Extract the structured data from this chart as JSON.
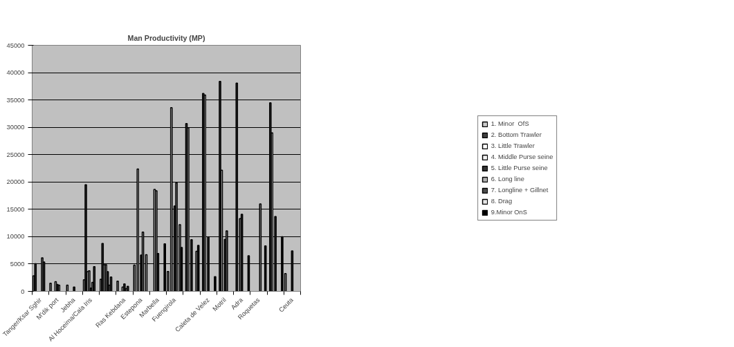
{
  "chart_data": {
    "type": "bar",
    "title": "Man Productivity (MP)",
    "categories": [
      "Tanger/Ksar Sghir",
      "M'dik port",
      "Jebha",
      "Al Hoceima/Cala Iris",
      null,
      "Ras Kebdana",
      "Estepona",
      "Marbella",
      "Fuengirola",
      null,
      "Caleta de Velez",
      "Motril",
      "Adra",
      "Roquetas",
      null,
      "Ceuta"
    ],
    "series": [
      {
        "name": "1. Minor  OfS",
        "color": "#cccccc",
        "values": [
          2830,
          1480,
          1140,
          2110,
          2200,
          1860,
          4810,
          null,
          3630,
          null,
          null,
          null,
          null,
          null,
          null,
          3250
        ]
      },
      {
        "name": "2. Bottom Trawler",
        "color": "#404040",
        "values": [
          5070,
          null,
          null,
          19500,
          8740,
          null,
          null,
          null,
          null,
          30700,
          36190,
          38400,
          38070,
          null,
          34480,
          null
        ]
      },
      {
        "name": "3. Little Trawler",
        "color": "#ffffff",
        "values": [
          null,
          null,
          null,
          3590,
          4860,
          null,
          22370,
          18650,
          33600,
          29920,
          35900,
          22160,
          null,
          null,
          28990,
          null
        ]
      },
      {
        "name": "4. Middle Purse seine",
        "color": "#f2f2f2",
        "values": [
          null,
          1770,
          null,
          3760,
          4860,
          800,
          null,
          18400,
          null,
          null,
          null,
          null,
          13290,
          null,
          null,
          null
        ]
      },
      {
        "name": "5. Little Purse seine",
        "color": "#333333",
        "values": [
          null,
          1270,
          800,
          590,
          3590,
          1350,
          6630,
          6920,
          15620,
          9460,
          9880,
          9500,
          14100,
          null,
          13670,
          7390
        ]
      },
      {
        "name": "6. Long line",
        "color": "#b0b0b0",
        "values": [
          6120,
          1140,
          null,
          1650,
          1140,
          510,
          10850,
          null,
          19840,
          null,
          null,
          11060,
          null,
          16000,
          null,
          null
        ]
      },
      {
        "name": "7. Longline + Gillnet",
        "color": "#4d4d4d",
        "values": [
          5360,
          null,
          null,
          4520,
          2620,
          930,
          null,
          null,
          null,
          null,
          null,
          null,
          null,
          null,
          null,
          null
        ]
      },
      {
        "name": "8. Drag",
        "color": "#e6e6e6",
        "values": [
          null,
          null,
          null,
          null,
          null,
          null,
          6710,
          null,
          12200,
          7340,
          null,
          null,
          null,
          null,
          null,
          null
        ]
      },
      {
        "name": "9.Minor OnS",
        "color": "#000000",
        "values": [
          null,
          null,
          null,
          null,
          null,
          null,
          null,
          8700,
          8020,
          8400,
          2700,
          null,
          6500,
          8310,
          10000,
          null
        ]
      }
    ],
    "ylim": [
      0,
      45000
    ],
    "yticks": [
      0,
      5000,
      10000,
      15000,
      20000,
      25000,
      30000,
      35000,
      40000,
      45000
    ],
    "grid": "y",
    "legend": "right"
  }
}
